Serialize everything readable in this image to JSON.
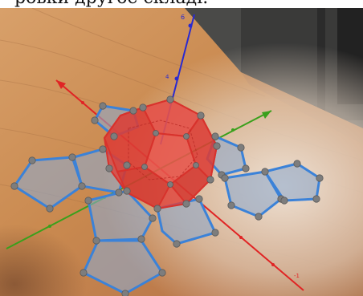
{
  "caption_fragment": "ровки другое складі.",
  "axes": {
    "z_label_top": "6",
    "z_label_mid": "4",
    "x_label_end": "-1"
  },
  "colors": {
    "net_stroke": "#3b82d8",
    "net_fill": "#8fa9c9",
    "solid_fill": "#e0403a",
    "axis_x": "#e02424",
    "axis_y": "#3aa01c",
    "axis_z": "#2a2ad0",
    "vertex": "#7d7d7d",
    "table": "#c98a56"
  }
}
